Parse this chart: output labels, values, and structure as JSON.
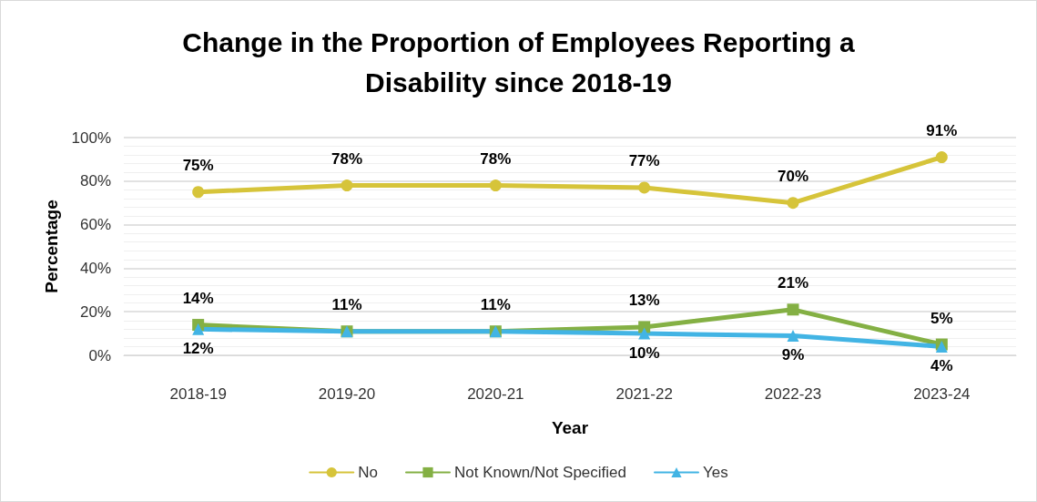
{
  "chart_data": {
    "type": "line",
    "title": "Change in the Proportion of Employees Reporting a\nDisability since 2018-19",
    "xlabel": "Year",
    "ylabel": "Percentage",
    "categories": [
      "2018-19",
      "2019-20",
      "2020-21",
      "2021-22",
      "2022-23",
      "2023-24"
    ],
    "series": [
      {
        "name": "No",
        "color": "#d6c43a",
        "marker": "circle",
        "values": [
          75,
          78,
          78,
          77,
          70,
          91
        ],
        "value_labels": [
          "75%",
          "78%",
          "78%",
          "77%",
          "70%",
          "91%"
        ]
      },
      {
        "name": "Not Known/Not Specified",
        "color": "#84b044",
        "marker": "square",
        "values": [
          14,
          11,
          11,
          13,
          21,
          5
        ],
        "value_labels": [
          "14%",
          "11%",
          "11%",
          "13%",
          "21%",
          "5%"
        ]
      },
      {
        "name": "Yes",
        "color": "#42b4e4",
        "marker": "triangle",
        "values": [
          12,
          11,
          11,
          10,
          9,
          4
        ],
        "value_labels": [
          "12%",
          null,
          null,
          "10%",
          "9%",
          "4%"
        ]
      }
    ],
    "ylim": [
      0,
      100
    ],
    "yticks": [
      {
        "value": 0,
        "label": "0%"
      },
      {
        "value": 20,
        "label": "20%"
      },
      {
        "value": 40,
        "label": "40%"
      },
      {
        "value": 60,
        "label": "60%"
      },
      {
        "value": 80,
        "label": "80%"
      },
      {
        "value": 100,
        "label": "100%"
      }
    ],
    "grid": "y",
    "legend": "bottom",
    "line_style": "solid"
  }
}
